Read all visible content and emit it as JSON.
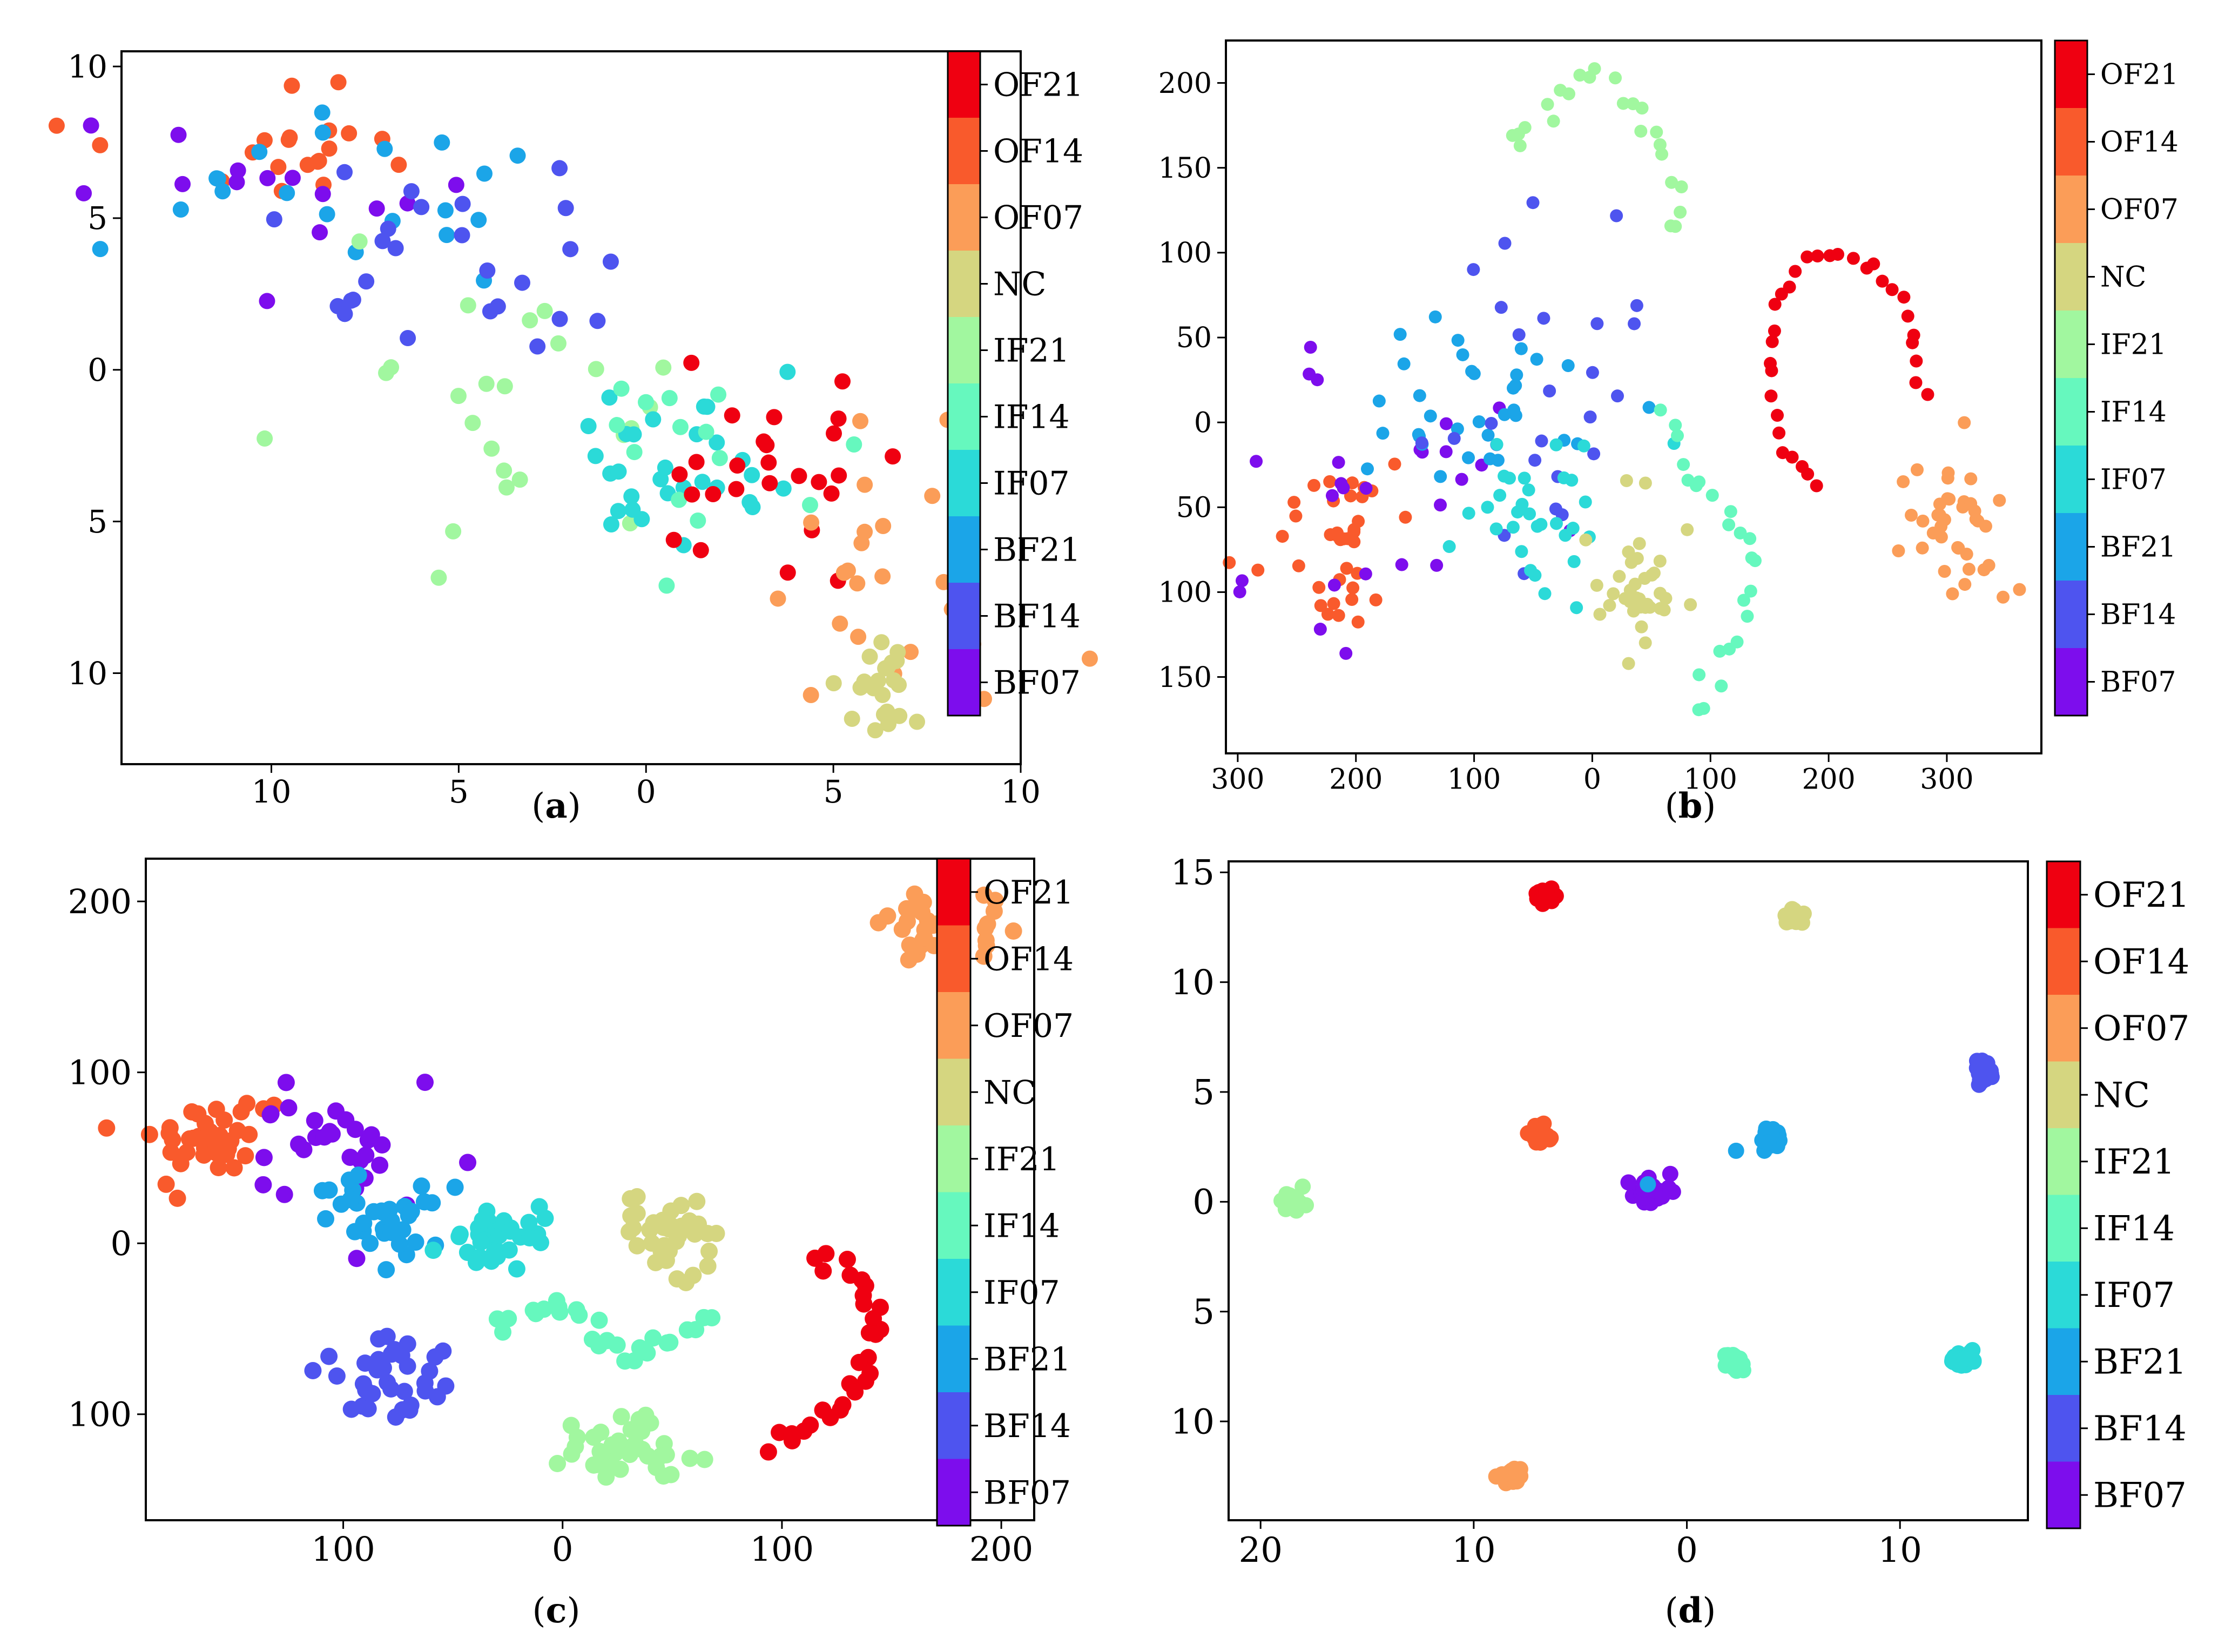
{
  "colorbar": {
    "labels": [
      "OF21",
      "OF14",
      "OF07",
      "NC",
      "IF21",
      "IF14",
      "IF07",
      "BF21",
      "BF14",
      "BF07"
    ],
    "colors": [
      "#ef0011",
      "#f95a2c",
      "#fb9d58",
      "#d5d680",
      "#a1f79f",
      "#66f8be",
      "#2bdad8",
      "#1ba5e8",
      "#4e54ef",
      "#7d0ded"
    ]
  },
  "chart_data": [
    {
      "type": "scatter",
      "caption": "a",
      "xlim": [
        -14,
        10
      ],
      "ylim": [
        -13,
        10.5
      ],
      "xticks": [
        -10,
        -5,
        0,
        5,
        10
      ],
      "xtick_labels": [
        "10",
        "5",
        "0",
        "5",
        "10"
      ],
      "yticks": [
        10,
        5,
        0,
        -5,
        -10
      ],
      "ytick_labels": [
        "10",
        "5",
        "0",
        "5",
        "10"
      ],
      "clusters": [
        {
          "cls": "OF14",
          "cx": -10,
          "cy": 7,
          "sx": 2.0,
          "sy": 1.4,
          "n": 20,
          "seed": 11
        },
        {
          "cls": "BF07",
          "cx": -10,
          "cy": 6.5,
          "sx": 2.0,
          "sy": 1.6,
          "n": 14,
          "seed": 12
        },
        {
          "cls": "BF21",
          "cx": -9,
          "cy": 6.5,
          "sx": 2.5,
          "sy": 1.8,
          "n": 20,
          "seed": 13
        },
        {
          "cls": "BF14",
          "cx": -4,
          "cy": 3,
          "sx": 2.6,
          "sy": 1.8,
          "n": 26,
          "seed": 14
        },
        {
          "cls": "IF21",
          "cx": -3.5,
          "cy": 0,
          "sx": 2.8,
          "sy": 2.5,
          "n": 24,
          "seed": 15
        },
        {
          "cls": "IF07",
          "cx": 1,
          "cy": -3,
          "sx": 1.8,
          "sy": 1.2,
          "n": 30,
          "seed": 16
        },
        {
          "cls": "IF14",
          "cx": 1,
          "cy": -2,
          "sx": 2.2,
          "sy": 1.5,
          "n": 14,
          "seed": 17
        },
        {
          "cls": "OF21",
          "cx": 3.5,
          "cy": -3,
          "sx": 1.4,
          "sy": 1.8,
          "n": 26,
          "seed": 18
        },
        {
          "cls": "OF07",
          "cx": 6.5,
          "cy": -6.5,
          "sx": 2.5,
          "sy": 2.2,
          "n": 24,
          "seed": 19
        },
        {
          "cls": "NC",
          "cx": 6.3,
          "cy": -10.5,
          "sx": 0.6,
          "sy": 0.8,
          "n": 22,
          "seed": 20
        }
      ]
    },
    {
      "type": "scatter",
      "caption": "b",
      "xlim": [
        -310,
        380
      ],
      "ylim": [
        -195,
        225
      ],
      "xticks": [
        -300,
        -200,
        -100,
        0,
        100,
        200,
        300
      ],
      "xtick_labels": [
        "300",
        "200",
        "100",
        "0",
        "100",
        "200",
        "300"
      ],
      "yticks": [
        200,
        150,
        100,
        50,
        0,
        -50,
        -100,
        -150
      ],
      "ytick_labels": [
        "200",
        "150",
        "100",
        "50",
        "0",
        "50",
        "100",
        "150"
      ],
      "clusters": [
        {
          "cls": "IF21",
          "arc": [
            [
              -70,
              165
            ],
            [
              -35,
              190
            ],
            [
              0,
              205
            ],
            [
              30,
              195
            ],
            [
              55,
              165
            ],
            [
              70,
              140
            ],
            [
              75,
              110
            ]
          ],
          "n": 24,
          "jitter": 5,
          "seed": 31
        },
        {
          "cls": "OF21",
          "arc": [
            [
              190,
              -40
            ],
            [
              160,
              -10
            ],
            [
              150,
              30
            ],
            [
              155,
              70
            ],
            [
              180,
              95
            ],
            [
              210,
              100
            ],
            [
              250,
              85
            ],
            [
              270,
              60
            ],
            [
              275,
              30
            ],
            [
              280,
              15
            ]
          ],
          "n": 32,
          "jitter": 2,
          "seed": 32
        },
        {
          "cls": "OF07",
          "cx": 305,
          "cy": -65,
          "sx": 22,
          "sy": 22,
          "n": 38,
          "seed": 33
        },
        {
          "cls": "OF14",
          "cx": -215,
          "cy": -72,
          "sx": 30,
          "sy": 28,
          "n": 38,
          "seed": 34
        },
        {
          "cls": "BF07",
          "cx": -200,
          "cy": -40,
          "sx": 60,
          "sy": 55,
          "n": 26,
          "seed": 35
        },
        {
          "cls": "BF21",
          "cx": -95,
          "cy": 15,
          "sx": 45,
          "sy": 30,
          "n": 34,
          "seed": 36
        },
        {
          "cls": "BF14",
          "cx": -40,
          "cy": 20,
          "sx": 50,
          "sy": 55,
          "n": 26,
          "seed": 37
        },
        {
          "cls": "IF07",
          "cx": -40,
          "cy": -45,
          "sx": 28,
          "sy": 28,
          "n": 32,
          "seed": 38
        },
        {
          "cls": "IF14",
          "arc": [
            [
              60,
              10
            ],
            [
              80,
              -30
            ],
            [
              110,
              -50
            ],
            [
              130,
              -70
            ],
            [
              140,
              -85
            ],
            [
              130,
              -110
            ],
            [
              120,
              -130
            ],
            [
              100,
              -155
            ],
            [
              90,
              -175
            ]
          ],
          "n": 24,
          "jitter": 4,
          "seed": 39
        },
        {
          "cls": "NC",
          "cx": 40,
          "cy": -100,
          "sx": 20,
          "sy": 22,
          "n": 36,
          "seed": 40
        }
      ]
    },
    {
      "type": "scatter",
      "caption": "c",
      "xlim": [
        -190,
        215
      ],
      "ylim": [
        -162,
        225
      ],
      "xticks": [
        -100,
        0,
        100,
        200
      ],
      "xtick_labels": [
        "100",
        "0",
        "100",
        "200"
      ],
      "yticks": [
        200,
        100,
        0,
        -100
      ],
      "ytick_labels": [
        "200",
        "100",
        "0",
        "100"
      ],
      "clusters": [
        {
          "cls": "OF07",
          "cx": 172,
          "cy": 185,
          "sx": 13,
          "sy": 9,
          "n": 42,
          "seed": 51
        },
        {
          "cls": "OF14",
          "cx": -162,
          "cy": 58,
          "sx": 15,
          "sy": 14,
          "n": 40,
          "seed": 52
        },
        {
          "cls": "BF07",
          "cx": -98,
          "cy": 55,
          "sx": 20,
          "sy": 18,
          "n": 30,
          "seed": 53
        },
        {
          "cls": "BF21",
          "cx": -88,
          "cy": 12,
          "sx": 20,
          "sy": 16,
          "n": 34,
          "seed": 54
        },
        {
          "cls": "IF07",
          "cx": -28,
          "cy": 5,
          "sx": 13,
          "sy": 10,
          "n": 38,
          "seed": 55
        },
        {
          "cls": "NC",
          "cx": 48,
          "cy": 8,
          "sx": 13,
          "sy": 11,
          "n": 40,
          "seed": 56
        },
        {
          "cls": "IF14",
          "arc": [
            [
              -30,
              -50
            ],
            [
              0,
              -35
            ],
            [
              20,
              -60
            ],
            [
              35,
              -70
            ],
            [
              50,
              -55
            ],
            [
              70,
              -45
            ]
          ],
          "n": 28,
          "jitter": 3,
          "seed": 57
        },
        {
          "cls": "OF21",
          "arc": [
            [
              118,
              -5
            ],
            [
              135,
              -20
            ],
            [
              145,
              -45
            ],
            [
              140,
              -75
            ],
            [
              128,
              -95
            ],
            [
              110,
              -110
            ],
            [
              95,
              -120
            ]
          ],
          "n": 30,
          "jitter": 3,
          "seed": 58
        },
        {
          "cls": "BF14",
          "cx": -82,
          "cy": -78,
          "sx": 15,
          "sy": 11,
          "n": 34,
          "seed": 59
        },
        {
          "cls": "IF21",
          "cx": 30,
          "cy": -123,
          "sx": 17,
          "sy": 11,
          "n": 36,
          "seed": 60
        }
      ]
    },
    {
      "type": "scatter",
      "caption": "d",
      "xlim": [
        -21.5,
        16
      ],
      "ylim": [
        -14.5,
        15.5
      ],
      "xticks": [
        -20,
        -10,
        0,
        10
      ],
      "xtick_labels": [
        "20",
        "10",
        "0",
        "10"
      ],
      "yticks": [
        15,
        10,
        5,
        0,
        -5,
        -10
      ],
      "ytick_labels": [
        "15",
        "10",
        "5",
        "0",
        "5",
        "10"
      ],
      "clusters": [
        {
          "cls": "OF21",
          "cx": -6.7,
          "cy": 14,
          "sx": 0.25,
          "sy": 0.2,
          "n": 30,
          "seed": 71
        },
        {
          "cls": "NC",
          "cx": 5,
          "cy": 13,
          "sx": 0.25,
          "sy": 0.2,
          "n": 30,
          "seed": 72
        },
        {
          "cls": "OF14",
          "cx": -7,
          "cy": 3,
          "sx": 0.25,
          "sy": 0.2,
          "n": 30,
          "seed": 73
        },
        {
          "cls": "BF21",
          "cx": 3.9,
          "cy": 2.9,
          "sx": 0.25,
          "sy": 0.2,
          "n": 30,
          "seed": 74
        },
        {
          "cls": "BF21",
          "cx": 2.3,
          "cy": 2.3,
          "sx": 0.02,
          "sy": 0.02,
          "n": 1,
          "seed": 75
        },
        {
          "cls": "BF14",
          "cx": 13.9,
          "cy": 5.9,
          "sx": 0.2,
          "sy": 0.25,
          "n": 26,
          "seed": 76
        },
        {
          "cls": "IF21",
          "cx": -18.5,
          "cy": 0,
          "sx": 0.25,
          "sy": 0.2,
          "n": 30,
          "seed": 77
        },
        {
          "cls": "BF07",
          "cx": -1.8,
          "cy": 0.5,
          "sx": 0.5,
          "sy": 0.3,
          "n": 30,
          "seed": 78
        },
        {
          "cls": "BF21",
          "cx": -1.8,
          "cy": 0.8,
          "sx": 0.02,
          "sy": 0.02,
          "n": 1,
          "seed": 79
        },
        {
          "cls": "IF14",
          "cx": 2.2,
          "cy": -7.3,
          "sx": 0.25,
          "sy": 0.2,
          "n": 30,
          "seed": 80
        },
        {
          "cls": "IF07",
          "cx": 12.9,
          "cy": -7.2,
          "sx": 0.25,
          "sy": 0.2,
          "n": 30,
          "seed": 81
        },
        {
          "cls": "OF07",
          "cx": -8.2,
          "cy": -12.5,
          "sx": 0.25,
          "sy": 0.2,
          "n": 30,
          "seed": 82
        }
      ]
    }
  ]
}
